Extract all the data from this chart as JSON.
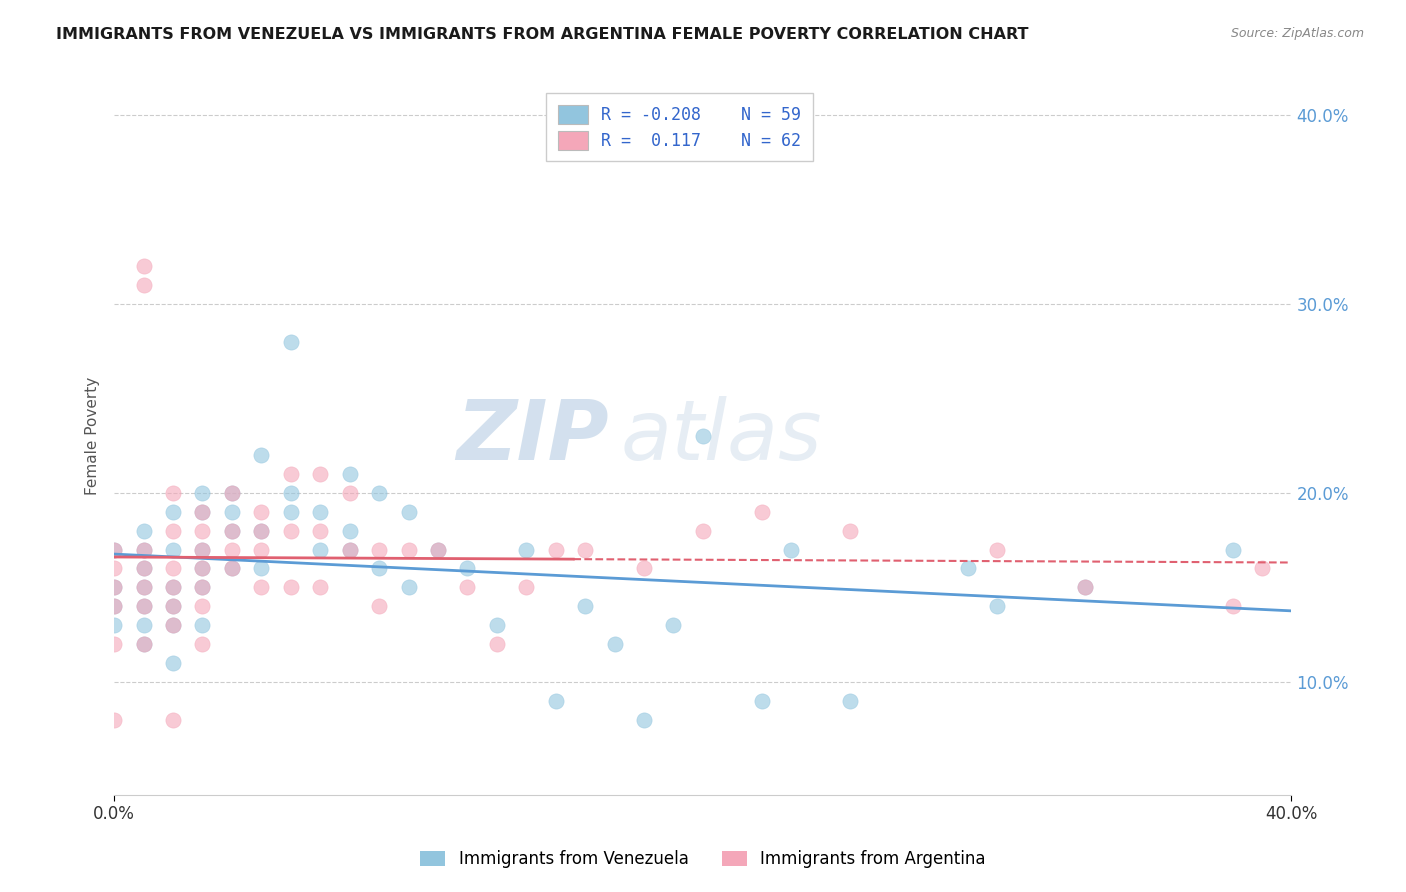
{
  "title": "IMMIGRANTS FROM VENEZUELA VS IMMIGRANTS FROM ARGENTINA FEMALE POVERTY CORRELATION CHART",
  "source_text": "Source: ZipAtlas.com",
  "ylabel": "Female Poverty",
  "legend_label1": "Immigrants from Venezuela",
  "legend_label2": "Immigrants from Argentina",
  "scatter_color1": "#92c5de",
  "scatter_color2": "#f4a7b9",
  "line_color1": "#5b9bd5",
  "line_color2": "#e06070",
  "watermark_zip": "ZIP",
  "watermark_atlas": "atlas",
  "xlim": [
    0.0,
    0.4
  ],
  "ylim": [
    0.04,
    0.42
  ],
  "ytick_labels": [
    "10.0%",
    "20.0%",
    "30.0%",
    "40.0%"
  ],
  "ytick_values": [
    0.1,
    0.2,
    0.3,
    0.4
  ],
  "background_color": "#ffffff",
  "grid_color": "#cccccc",
  "venezuela_x": [
    0.0,
    0.0,
    0.0,
    0.0,
    0.01,
    0.01,
    0.01,
    0.01,
    0.01,
    0.01,
    0.01,
    0.02,
    0.02,
    0.02,
    0.02,
    0.02,
    0.02,
    0.03,
    0.03,
    0.03,
    0.03,
    0.03,
    0.03,
    0.04,
    0.04,
    0.04,
    0.04,
    0.05,
    0.05,
    0.05,
    0.06,
    0.06,
    0.06,
    0.07,
    0.07,
    0.08,
    0.08,
    0.08,
    0.09,
    0.09,
    0.1,
    0.1,
    0.11,
    0.12,
    0.13,
    0.14,
    0.15,
    0.16,
    0.17,
    0.18,
    0.19,
    0.2,
    0.22,
    0.23,
    0.25,
    0.29,
    0.3,
    0.33,
    0.38
  ],
  "venezuela_y": [
    0.17,
    0.15,
    0.14,
    0.13,
    0.18,
    0.17,
    0.16,
    0.15,
    0.14,
    0.13,
    0.12,
    0.19,
    0.17,
    0.15,
    0.14,
    0.13,
    0.11,
    0.2,
    0.19,
    0.17,
    0.16,
    0.15,
    0.13,
    0.2,
    0.19,
    0.18,
    0.16,
    0.22,
    0.18,
    0.16,
    0.28,
    0.2,
    0.19,
    0.19,
    0.17,
    0.21,
    0.18,
    0.17,
    0.2,
    0.16,
    0.19,
    0.15,
    0.17,
    0.16,
    0.13,
    0.17,
    0.09,
    0.14,
    0.12,
    0.08,
    0.13,
    0.23,
    0.09,
    0.17,
    0.09,
    0.16,
    0.14,
    0.15,
    0.17
  ],
  "argentina_x": [
    0.0,
    0.0,
    0.0,
    0.0,
    0.0,
    0.0,
    0.01,
    0.01,
    0.01,
    0.01,
    0.01,
    0.01,
    0.01,
    0.02,
    0.02,
    0.02,
    0.02,
    0.02,
    0.02,
    0.02,
    0.03,
    0.03,
    0.03,
    0.03,
    0.03,
    0.03,
    0.03,
    0.04,
    0.04,
    0.04,
    0.04,
    0.05,
    0.05,
    0.05,
    0.05,
    0.06,
    0.06,
    0.06,
    0.07,
    0.07,
    0.07,
    0.08,
    0.08,
    0.09,
    0.09,
    0.1,
    0.11,
    0.12,
    0.13,
    0.14,
    0.15,
    0.16,
    0.18,
    0.2,
    0.22,
    0.25,
    0.3,
    0.33,
    0.38,
    0.39
  ],
  "argentina_y": [
    0.17,
    0.16,
    0.15,
    0.14,
    0.12,
    0.08,
    0.32,
    0.31,
    0.17,
    0.16,
    0.15,
    0.14,
    0.12,
    0.2,
    0.18,
    0.16,
    0.15,
    0.14,
    0.13,
    0.08,
    0.19,
    0.18,
    0.17,
    0.16,
    0.15,
    0.14,
    0.12,
    0.2,
    0.18,
    0.17,
    0.16,
    0.19,
    0.18,
    0.17,
    0.15,
    0.21,
    0.18,
    0.15,
    0.21,
    0.18,
    0.15,
    0.2,
    0.17,
    0.17,
    0.14,
    0.17,
    0.17,
    0.15,
    0.12,
    0.15,
    0.17,
    0.17,
    0.16,
    0.18,
    0.19,
    0.18,
    0.17,
    0.15,
    0.14,
    0.16
  ]
}
